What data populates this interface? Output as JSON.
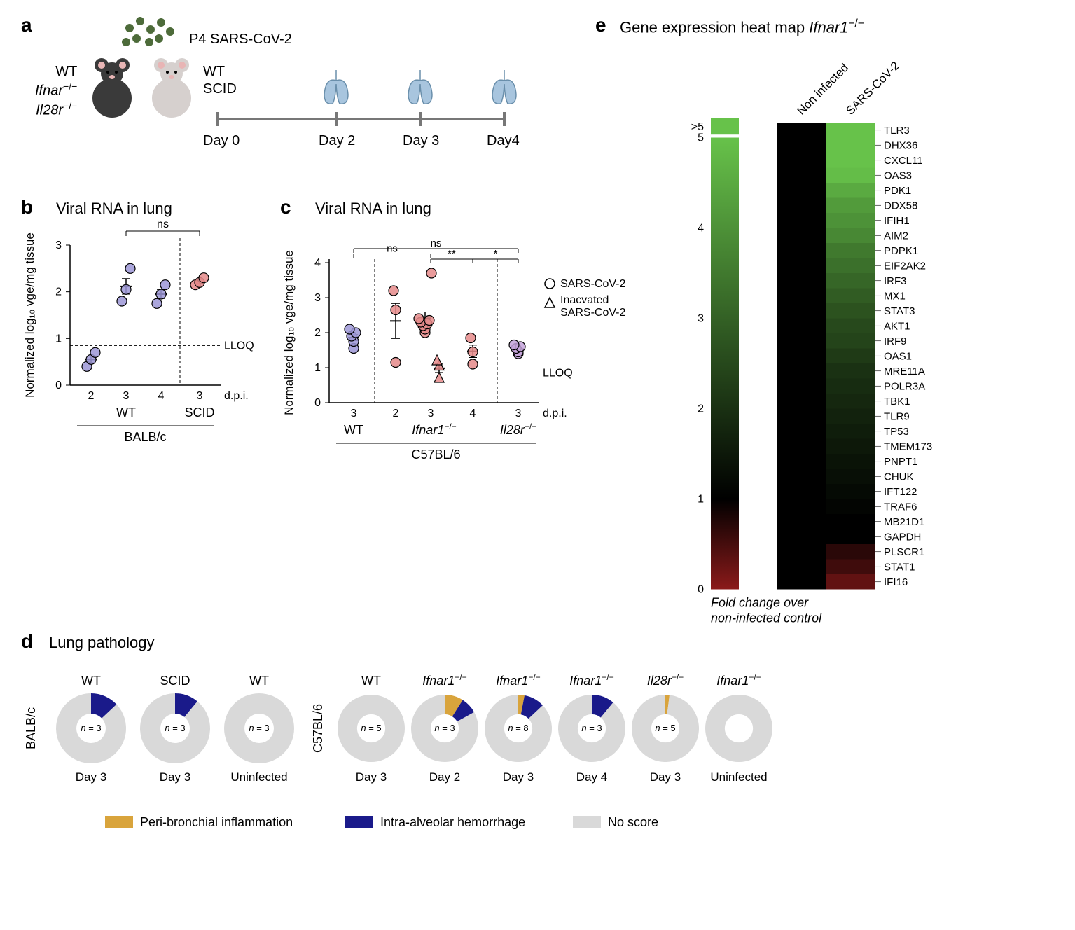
{
  "panel_a": {
    "label": "a",
    "virus_label": "P4 SARS-CoV-2",
    "mouse_left": {
      "line1": "WT",
      "line2": "Ifnar",
      "line2_sup": "−/−",
      "line3": "Il28r",
      "line3_sup": "−/−"
    },
    "mouse_right": {
      "line1": "WT",
      "line2": "SCID"
    },
    "timeline_days": [
      "Day 0",
      "Day 2",
      "Day 3",
      "Day4"
    ],
    "colors": {
      "mouse_dark": "#3a3a3a",
      "mouse_light": "#d6d0ce",
      "virus": "#4d6b3a",
      "lung": "#7ba5c9",
      "timeline": "#777777"
    }
  },
  "panel_b": {
    "label": "b",
    "title": "Viral RNA in lung",
    "ylabel": "Normalized log₁₀ vge/mg tissue",
    "xlabel_dpi": "d.p.i.",
    "ylim": [
      0,
      3
    ],
    "ytick_step": 1,
    "lloq_y": 0.85,
    "lloq_label": "LLOQ",
    "stat_ns": "ns",
    "groups": [
      {
        "dpi": "2",
        "strain": "WT",
        "points": [
          0.4,
          0.55,
          0.7
        ],
        "color": "#9c97d6"
      },
      {
        "dpi": "3",
        "strain": "WT",
        "points": [
          1.8,
          2.05,
          2.5
        ],
        "color": "#9c97d6"
      },
      {
        "dpi": "4",
        "strain": "WT",
        "points": [
          1.75,
          1.95,
          2.15
        ],
        "color": "#9c97d6"
      },
      {
        "dpi": "3",
        "strain": "SCID",
        "points": [
          2.15,
          2.2,
          2.3
        ],
        "color": "#e58a8a"
      }
    ],
    "strain_labels": [
      {
        "text": "WT",
        "span": [
          0,
          2
        ]
      },
      {
        "text": "SCID",
        "span": [
          3,
          3
        ]
      }
    ],
    "bottom_label": "BALB/c"
  },
  "panel_c": {
    "label": "c",
    "title": "Viral RNA in lung",
    "ylabel": "Normalized log₁₀ vge/mg tissue",
    "xlabel_dpi": "d.p.i.",
    "ylim": [
      0,
      4
    ],
    "ytick_step": 1,
    "lloq_y": 0.85,
    "lloq_label": "LLOQ",
    "stats": [
      {
        "text": "ns",
        "from": 0,
        "to": 4,
        "y": 4.6
      },
      {
        "text": "ns",
        "from": 0,
        "to": 2,
        "y": 4.3
      },
      {
        "text": "**",
        "from": 2,
        "to": 3,
        "y": 4.0
      },
      {
        "text": "*",
        "from": 3,
        "to": 4,
        "y": 4.0
      }
    ],
    "legend": [
      {
        "marker": "circle",
        "label": "SARS-CoV-2"
      },
      {
        "marker": "triangle",
        "label_line1": "Inacvated",
        "label_line2": "SARS-CoV-2"
      }
    ],
    "groups": [
      {
        "dpi": "3",
        "strain": "WT",
        "points": [
          1.55,
          1.75,
          1.9,
          2.0,
          2.1
        ],
        "color": "#9c97d6",
        "marker": "circle"
      },
      {
        "dpi": "2",
        "strain": "Ifnar",
        "points": [
          1.15,
          2.65,
          3.2
        ],
        "color": "#e58a8a",
        "marker": "circle"
      },
      {
        "dpi": "3",
        "strain": "Ifnar",
        "points": [
          2.0,
          2.1,
          2.2,
          2.25,
          2.3,
          2.35,
          2.4,
          3.7
        ],
        "color": "#e58a8a",
        "marker": "circle"
      },
      {
        "dpi": "3",
        "strain": "Ifnar_inact",
        "points": [
          0.7,
          1.05,
          1.2
        ],
        "color": "#e58a8a",
        "marker": "triangle"
      },
      {
        "dpi": "4",
        "strain": "Ifnar",
        "points": [
          1.1,
          1.45,
          1.85
        ],
        "color": "#e58a8a",
        "marker": "circle"
      },
      {
        "dpi": "3",
        "strain": "Il28r",
        "points": [
          1.4,
          1.45,
          1.55,
          1.6,
          1.65
        ],
        "color": "#c4a3d9",
        "marker": "circle"
      }
    ],
    "x_ticks": [
      "3",
      "2",
      "3",
      "4",
      "3"
    ],
    "strain_labels": [
      {
        "text": "WT",
        "italic": false,
        "sup": "",
        "span": [
          0,
          0
        ]
      },
      {
        "text": "Ifnar1",
        "italic": true,
        "sup": "−/−",
        "span": [
          1,
          3
        ]
      },
      {
        "text": "Il28r",
        "italic": true,
        "sup": "−/−",
        "span": [
          4,
          4
        ]
      }
    ],
    "bottom_label": "C57BL/6"
  },
  "panel_d": {
    "label": "d",
    "title": "Lung pathology",
    "row_labels": [
      "BALB/c",
      "C57BL/6"
    ],
    "donuts_balb": [
      {
        "top": "WT",
        "n": 3,
        "bottom": "Day 3",
        "slices": {
          "peri": 0,
          "hem": 0.13,
          "none": 0.87
        }
      },
      {
        "top": "SCID",
        "n": 3,
        "bottom": "Day 3",
        "slices": {
          "peri": 0,
          "hem": 0.11,
          "none": 0.89
        }
      },
      {
        "top": "WT",
        "n": 3,
        "bottom": "Uninfected",
        "slices": {
          "peri": 0,
          "hem": 0,
          "none": 1.0
        }
      }
    ],
    "donuts_c57": [
      {
        "top": "WT",
        "n": 5,
        "bottom": "Day 3",
        "slices": {
          "peri": 0,
          "hem": 0,
          "none": 1.0
        },
        "italic": false,
        "sup": ""
      },
      {
        "top": "Ifnar1",
        "n": 3,
        "bottom": "Day 2",
        "slices": {
          "peri": 0.09,
          "hem": 0.08,
          "none": 0.83
        },
        "italic": true,
        "sup": "−/−"
      },
      {
        "top": "Ifnar1",
        "n": 8,
        "bottom": "Day 3",
        "slices": {
          "peri": 0.03,
          "hem": 0.1,
          "none": 0.87
        },
        "italic": true,
        "sup": "−/−"
      },
      {
        "top": "Ifnar1",
        "n": 3,
        "bottom": "Day 4",
        "slices": {
          "peri": 0,
          "hem": 0.11,
          "none": 0.89
        },
        "italic": true,
        "sup": "−/−"
      },
      {
        "top": "Il28r",
        "n": 5,
        "bottom": "Day 3",
        "slices": {
          "peri": 0.02,
          "hem": 0,
          "none": 0.98
        },
        "italic": true,
        "sup": "−/−"
      },
      {
        "top": "Ifnar1",
        "n": null,
        "bottom": "Uninfected",
        "slices": {
          "peri": 0,
          "hem": 0,
          "none": 1.0
        },
        "italic": true,
        "sup": "−/−"
      }
    ],
    "legend": [
      {
        "color": "#d9a43c",
        "label": "Peri-bronchial inflammation"
      },
      {
        "color": "#1a1a8a",
        "label": "Intra-alveolar hemorrhage"
      },
      {
        "color": "#d9d9d9",
        "label": "No score"
      }
    ],
    "colors": {
      "peri": "#d9a43c",
      "hem": "#1a1a8a",
      "none": "#d9d9d9"
    }
  },
  "panel_e": {
    "label": "e",
    "title_prefix": "Gene expression heat map ",
    "title_gene": "Ifnar1",
    "title_sup": "−/−",
    "col_labels": [
      "Non infected",
      "SARS-CoV-2"
    ],
    "scale_top_label": ">5",
    "scale_ticks": [
      5,
      4,
      3,
      2,
      1,
      0
    ],
    "caption": "Fold change over\nnon-infected control",
    "genes": [
      {
        "name": "TLR3",
        "fc": 6.5
      },
      {
        "name": "DHX36",
        "fc": 6.3
      },
      {
        "name": "CXCL11",
        "fc": 5.5
      },
      {
        "name": "OAS3",
        "fc": 4.9
      },
      {
        "name": "PDK1",
        "fc": 4.5
      },
      {
        "name": "DDX58",
        "fc": 4.2
      },
      {
        "name": "IFIH1",
        "fc": 4.0
      },
      {
        "name": "AIM2",
        "fc": 3.8
      },
      {
        "name": "PDPK1",
        "fc": 3.5
      },
      {
        "name": "EIF2AK2",
        "fc": 3.3
      },
      {
        "name": "IRF3",
        "fc": 3.1
      },
      {
        "name": "MX1",
        "fc": 2.9
      },
      {
        "name": "STAT3",
        "fc": 2.7
      },
      {
        "name": "AKT1",
        "fc": 2.5
      },
      {
        "name": "IRF9",
        "fc": 2.4
      },
      {
        "name": "OAS1",
        "fc": 2.2
      },
      {
        "name": "MRE11A",
        "fc": 2.0
      },
      {
        "name": "POLR3A",
        "fc": 1.9
      },
      {
        "name": "TBK1",
        "fc": 1.8
      },
      {
        "name": "TLR9",
        "fc": 1.7
      },
      {
        "name": "TP53",
        "fc": 1.6
      },
      {
        "name": "TMEM173",
        "fc": 1.5
      },
      {
        "name": "PNPT1",
        "fc": 1.4
      },
      {
        "name": "CHUK",
        "fc": 1.3
      },
      {
        "name": "IFT122",
        "fc": 1.2
      },
      {
        "name": "TRAF6",
        "fc": 1.1
      },
      {
        "name": "MB21D1",
        "fc": 1.0
      },
      {
        "name": "GAPDH",
        "fc": 1.0
      },
      {
        "name": "PLSCR1",
        "fc": 0.7
      },
      {
        "name": "STAT1",
        "fc": 0.55
      },
      {
        "name": "IFI16",
        "fc": 0.3
      }
    ],
    "colors": {
      "high": "#67c24a",
      "mid": "#000000",
      "low": "#8b1a1a"
    }
  },
  "n_label_prefix": "n = "
}
